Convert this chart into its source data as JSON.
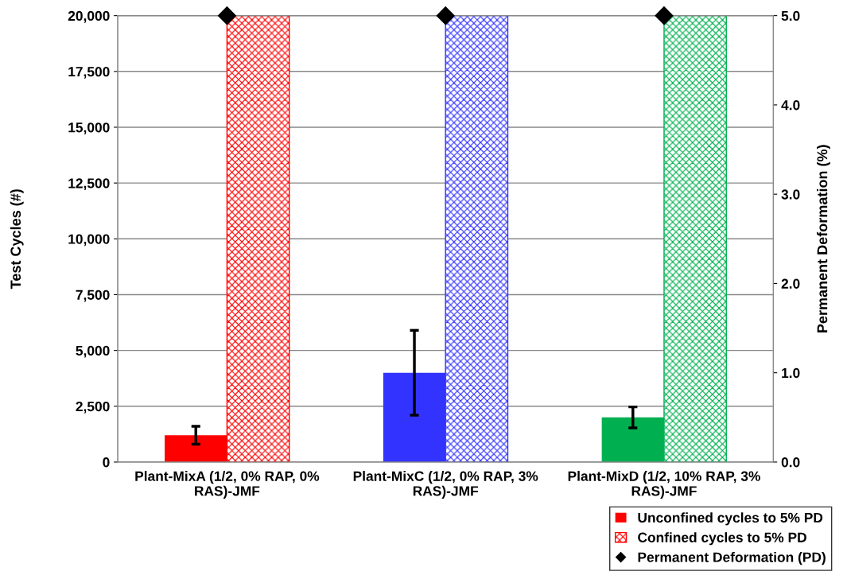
{
  "chart_data": {
    "type": "bar",
    "categories": [
      "Plant-MixA (1/2, 0% RAP, 0%\nRAS)-JMF",
      "Plant-MixC (1/2, 0% RAP, 3%\nRAS)-JMF",
      "Plant-MixD (1/2, 10% RAP, 3%\nRAS)-JMF"
    ],
    "ylabel": "Test Cycles (#)",
    "y2label": "Permanent Deformation (%)",
    "ylim": [
      0,
      20000
    ],
    "yticks": [
      {
        "value": 0,
        "label": "0"
      },
      {
        "value": 2500,
        "label": "2,500"
      },
      {
        "value": 5000,
        "label": "5,000"
      },
      {
        "value": 7500,
        "label": "7,500"
      },
      {
        "value": 10000,
        "label": "10,000"
      },
      {
        "value": 12500,
        "label": "12,500"
      },
      {
        "value": 15000,
        "label": "15,000"
      },
      {
        "value": 17500,
        "label": "17,500"
      },
      {
        "value": 20000,
        "label": "20,000"
      }
    ],
    "y2lim": [
      0,
      5
    ],
    "y2ticks": [
      {
        "value": 0,
        "label": "0.0"
      },
      {
        "value": 1,
        "label": "1.0"
      },
      {
        "value": 2,
        "label": "2.0"
      },
      {
        "value": 3,
        "label": "3.0"
      },
      {
        "value": 4,
        "label": "4.0"
      },
      {
        "value": 5,
        "label": "5.0"
      }
    ],
    "grid": "y",
    "legend": "bottom right",
    "series": [
      {
        "name": "Unconfined cycles to 5% PD",
        "color": "#ff0000",
        "colors": [
          "#ff0000",
          "#3333ff",
          "#00b050"
        ],
        "values": [
          1200,
          4000,
          2000
        ],
        "errors": [
          400,
          1900,
          470
        ]
      },
      {
        "name": "Confined cycles to 5% PD",
        "color": "#ff0000",
        "colors": [
          "#ff0000",
          "#3333ff",
          "#00b050"
        ],
        "values": [
          20000,
          20000,
          20000
        ]
      },
      {
        "name": "Permanent Deformation (PD)",
        "type": "scatter",
        "axis": "y2",
        "color": "#000000",
        "marker": "diamond",
        "values": [
          5.0,
          5.0,
          5.0
        ]
      }
    ]
  }
}
